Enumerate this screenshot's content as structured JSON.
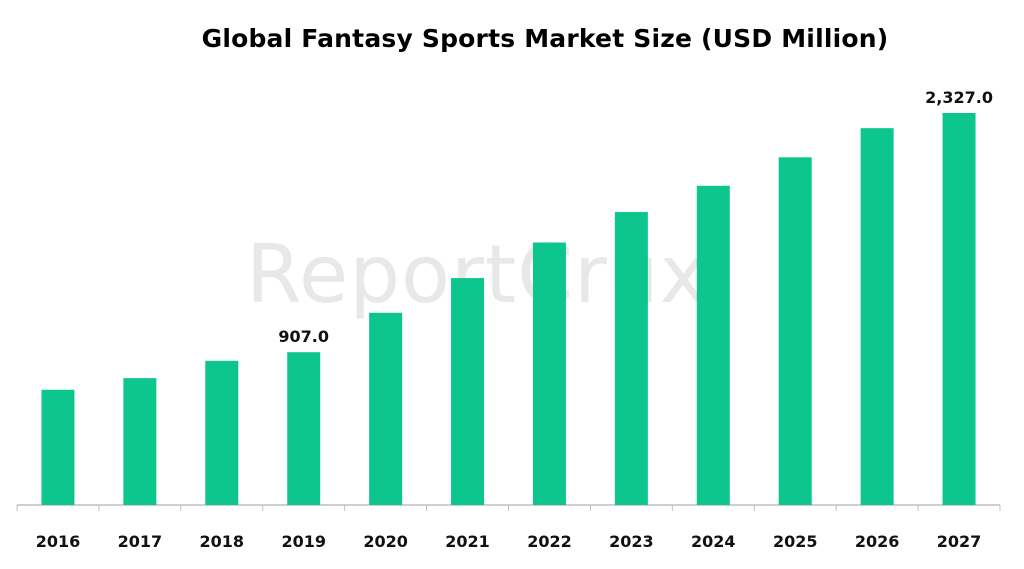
{
  "watermark": "ReportCrux",
  "colors": {
    "bar": "#0cc68e",
    "axis": "#bfbfbf",
    "text": "#111111"
  },
  "chart_data": {
    "type": "bar",
    "title": "Global Fantasy Sports Market Size (USD Million)",
    "xlabel": "",
    "ylabel": "",
    "categories": [
      "2016",
      "2017",
      "2018",
      "2019",
      "2020",
      "2021",
      "2022",
      "2023",
      "2024",
      "2025",
      "2026",
      "2027"
    ],
    "values": [
      684,
      753,
      856,
      907,
      1141,
      1347,
      1558,
      1739,
      1895,
      2064,
      2237,
      2327.0
    ],
    "data_labels": [
      {
        "index": 3,
        "text": "907.0"
      },
      {
        "index": 11,
        "text": "2,327.0"
      }
    ],
    "ylim": [
      0,
      2327
    ],
    "grid": false,
    "legend": "none"
  }
}
